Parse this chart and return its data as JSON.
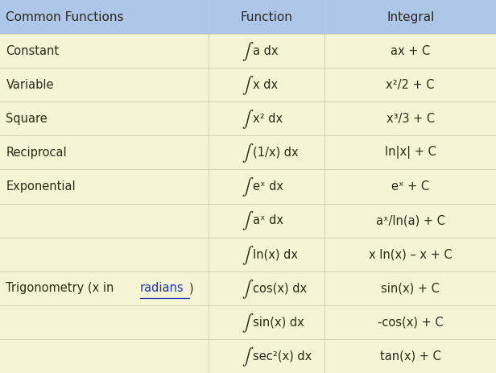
{
  "header": [
    "Common Functions",
    "Function",
    "Integral"
  ],
  "header_bg": "#aec6e8",
  "row_bg": "#f5f5d5",
  "text_color": "#2a2a1a",
  "link_color": "#2233bb",
  "col_bounds": [
    0.0,
    0.42,
    0.655,
    1.0
  ],
  "figsize": [
    6.16,
    4.63
  ],
  "dpi": 100,
  "rows": [
    {
      "col0": "Constant",
      "col1": "a dx",
      "col2": "ax + C"
    },
    {
      "col0": "Variable",
      "col1": "x dx",
      "col2": "x²/2 + C"
    },
    {
      "col0": "Square",
      "col1": "x² dx",
      "col2": "x³/3 + C"
    },
    {
      "col0": "Reciprocal",
      "col1": "(1/x) dx",
      "col2": "ln|x| + C"
    },
    {
      "col0": "Exponential",
      "col1": "eˣ dx",
      "col2": "eˣ + C"
    },
    {
      "col0": "",
      "col1": "aˣ dx",
      "col2": "aˣ/ln(a) + C"
    },
    {
      "col0": "",
      "col1": "ln(x) dx",
      "col2": "x ln(x) – x + C"
    },
    {
      "col0": "Trigonometry (x in |radians|)",
      "col1": "cos(x) dx",
      "col2": "sin(x) + C"
    },
    {
      "col0": "",
      "col1": "sin(x) dx",
      "col2": "-cos(x) + C"
    },
    {
      "col0": "",
      "col1": "sec²(x) dx",
      "col2": "tan(x) + C"
    }
  ]
}
